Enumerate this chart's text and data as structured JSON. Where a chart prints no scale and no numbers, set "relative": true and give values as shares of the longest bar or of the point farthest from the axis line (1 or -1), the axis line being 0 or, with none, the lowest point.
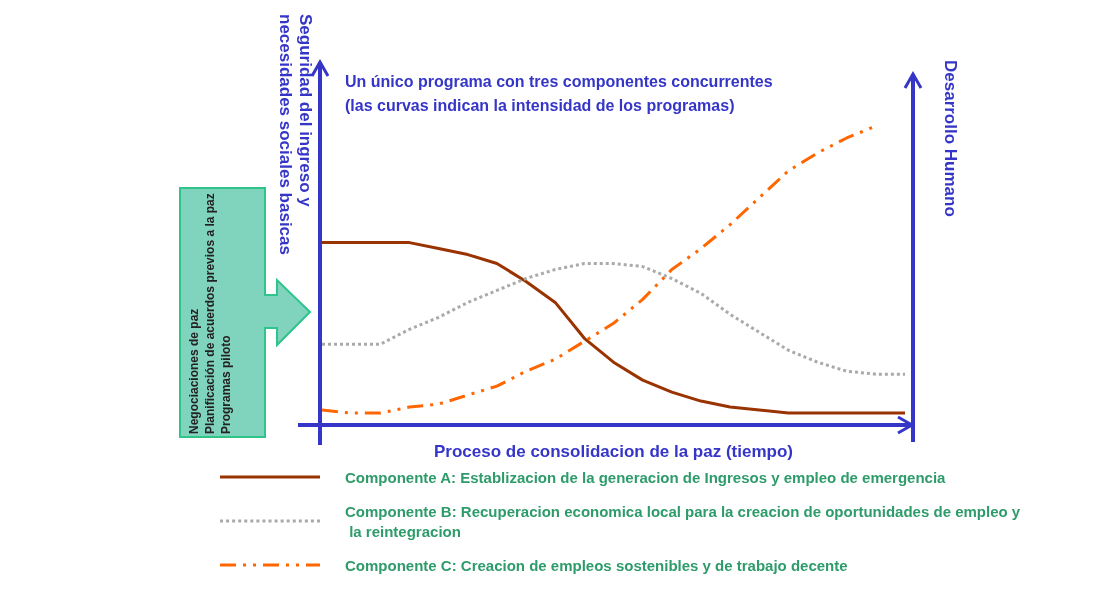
{
  "chart_data": {
    "type": "line",
    "relative": true,
    "title": "Un único programa con tres componentes concurrentes (las curvas indican la intensidad de los programas)",
    "xlabel": "Proceso de consolidacion de la paz (tiempo)",
    "ylabel": "Seguridad del ingreso y necesidades sociales basicas",
    "y2label": "Desarrollo Humano",
    "annotations": [
      "Negociaciones de paz",
      "Planificación de acuerdos previos a la paz",
      "Programas piloto"
    ],
    "legend": "bottom",
    "categories": [
      null,
      null,
      null,
      null,
      null,
      null,
      null,
      null,
      null,
      null,
      null,
      null,
      null,
      null,
      null,
      null,
      null,
      null,
      null,
      null,
      null
    ],
    "series": [
      {
        "name": "Componente A: Establizacion de la generacion de Ingresos y empleo de emergencia",
        "color": "#993300",
        "line_style": "solid",
        "values": [
          0.61,
          0.61,
          0.61,
          0.61,
          0.59,
          0.57,
          0.54,
          0.48,
          0.41,
          0.29,
          0.21,
          0.15,
          0.11,
          0.08,
          0.06,
          0.05,
          0.04,
          0.04,
          0.04,
          0.04,
          0.04
        ]
      },
      {
        "name": "Componente B: Recuperacion economica local para la creacion de oportunidades de empleo y la reintegracion",
        "color": "#aaaaaa",
        "line_style": "dotted",
        "values": [
          0.27,
          0.27,
          0.27,
          0.32,
          0.36,
          0.41,
          0.45,
          0.49,
          0.52,
          0.54,
          0.54,
          0.53,
          0.49,
          0.44,
          0.37,
          0.31,
          0.25,
          0.21,
          0.18,
          0.17,
          0.17
        ]
      },
      {
        "name": "Componente C: Creacion de empleos sostenibles y de trabajo decente",
        "color": "#ff6600",
        "line_style": "dashed",
        "values": [
          0.05,
          0.04,
          0.04,
          0.06,
          0.07,
          0.1,
          0.13,
          0.18,
          0.22,
          0.28,
          0.34,
          0.42,
          0.52,
          0.59,
          0.67,
          0.76,
          0.85,
          0.91,
          0.96,
          1,
          null
        ]
      }
    ]
  }
}
